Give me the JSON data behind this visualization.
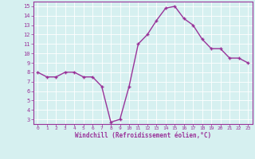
{
  "x": [
    0,
    1,
    2,
    3,
    4,
    5,
    6,
    7,
    8,
    9,
    10,
    11,
    12,
    13,
    14,
    15,
    16,
    17,
    18,
    19,
    20,
    21,
    22,
    23
  ],
  "y": [
    8.0,
    7.5,
    7.5,
    8.0,
    8.0,
    7.5,
    7.5,
    6.5,
    2.7,
    3.0,
    6.5,
    11.0,
    12.0,
    13.5,
    14.8,
    15.0,
    13.7,
    13.0,
    11.5,
    10.5,
    10.5,
    9.5,
    9.5,
    9.0
  ],
  "line_color": "#993399",
  "marker": "+",
  "marker_size": 4,
  "bg_color": "#d6f0f0",
  "grid_color": "#ffffff",
  "xlabel": "Windchill (Refroidissement éolien,°C)",
  "tick_color": "#993399",
  "ylim": [
    2.5,
    15.5
  ],
  "xlim": [
    -0.5,
    23.5
  ],
  "yticks": [
    3,
    4,
    5,
    6,
    7,
    8,
    9,
    10,
    11,
    12,
    13,
    14,
    15
  ],
  "xticks": [
    0,
    1,
    2,
    3,
    4,
    5,
    6,
    7,
    8,
    9,
    10,
    11,
    12,
    13,
    14,
    15,
    16,
    17,
    18,
    19,
    20,
    21,
    22,
    23
  ],
  "line_width": 1.0,
  "fig_bg_color": "#d6f0f0",
  "spine_color": "#993399"
}
